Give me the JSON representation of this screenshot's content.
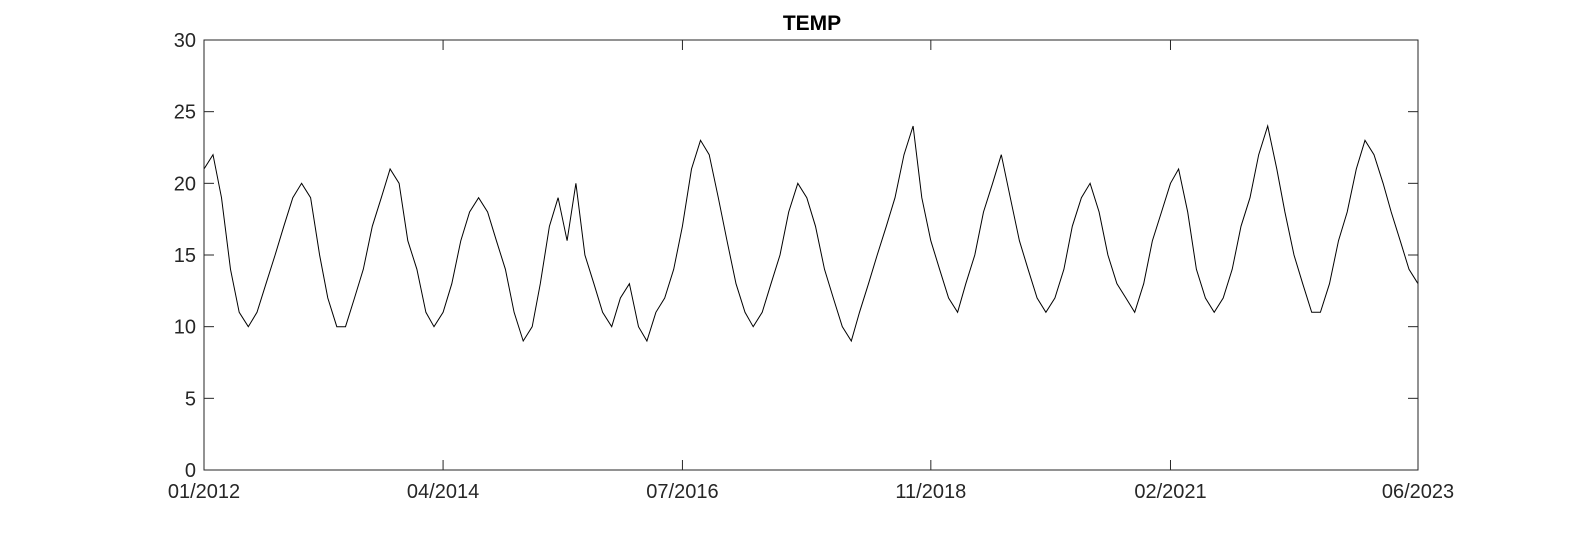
{
  "chart_data": {
    "type": "line",
    "title": "TEMP",
    "xlabel": "",
    "ylabel": "",
    "x_range": [
      "2012-01-01",
      "2023-06-01"
    ],
    "ylim": [
      0,
      30
    ],
    "x_ticks": [
      "01/2012",
      "04/2014",
      "07/2016",
      "11/2018",
      "02/2021",
      "06/2023"
    ],
    "y_ticks": [
      "0",
      "5",
      "10",
      "15",
      "20",
      "25",
      "30"
    ],
    "grid": false,
    "legend": "none",
    "line_color": "#000000",
    "series": [
      {
        "x": [
          "2012-01",
          "2012-02",
          "2012-03",
          "2012-04",
          "2012-05",
          "2012-06",
          "2012-07",
          "2012-08",
          "2012-09",
          "2012-10",
          "2012-11",
          "2012-12",
          "2013-01",
          "2013-02",
          "2013-03",
          "2013-04",
          "2013-05",
          "2013-06",
          "2013-07",
          "2013-08",
          "2013-09",
          "2013-10",
          "2013-11",
          "2013-12",
          "2014-01",
          "2014-02",
          "2014-03",
          "2014-04",
          "2014-05",
          "2014-06",
          "2014-07",
          "2014-08",
          "2014-09",
          "2014-10",
          "2014-11",
          "2014-12",
          "2015-01",
          "2015-02",
          "2015-03",
          "2015-04",
          "2015-05",
          "2015-06",
          "2015-07",
          "2015-08",
          "2015-09",
          "2015-10",
          "2015-11",
          "2015-12",
          "2016-01",
          "2016-02",
          "2016-03",
          "2016-04",
          "2016-05",
          "2016-06",
          "2016-07",
          "2016-08",
          "2016-09",
          "2016-10",
          "2016-11",
          "2016-12",
          "2017-01",
          "2017-02",
          "2017-03",
          "2017-04",
          "2017-05",
          "2017-06",
          "2017-07",
          "2017-08",
          "2017-09",
          "2017-10",
          "2017-11",
          "2017-12",
          "2018-01",
          "2018-02",
          "2018-03",
          "2018-04",
          "2018-05",
          "2018-06",
          "2018-07",
          "2018-08",
          "2018-09",
          "2018-10",
          "2018-11",
          "2018-12",
          "2019-01",
          "2019-02",
          "2019-03",
          "2019-04",
          "2019-05",
          "2019-06",
          "2019-07",
          "2019-08",
          "2019-09",
          "2019-10",
          "2019-11",
          "2019-12",
          "2020-01",
          "2020-02",
          "2020-03",
          "2020-04",
          "2020-05",
          "2020-06",
          "2020-07",
          "2020-08",
          "2020-09",
          "2020-10",
          "2020-11",
          "2020-12",
          "2021-01",
          "2021-02",
          "2021-03",
          "2021-04",
          "2021-05",
          "2021-06",
          "2021-07",
          "2021-08",
          "2021-09",
          "2021-10",
          "2021-11",
          "2021-12",
          "2022-01",
          "2022-02",
          "2022-03",
          "2022-04",
          "2022-05",
          "2022-06",
          "2022-07",
          "2022-08",
          "2022-09",
          "2022-10",
          "2022-11",
          "2022-12",
          "2023-01",
          "2023-02",
          "2023-03",
          "2023-04",
          "2023-05",
          "2023-06"
        ],
        "y": [
          21,
          22,
          19,
          14,
          11,
          10,
          11,
          13,
          15,
          17,
          19,
          20,
          19,
          15,
          12,
          10,
          10,
          12,
          14,
          17,
          19,
          21,
          20,
          16,
          14,
          11,
          10,
          11,
          13,
          16,
          18,
          19,
          18,
          16,
          14,
          11,
          9,
          10,
          13,
          17,
          19,
          16,
          20,
          15,
          13,
          11,
          10,
          12,
          13,
          10,
          9,
          11,
          12,
          14,
          17,
          21,
          23,
          22,
          19,
          16,
          13,
          11,
          10,
          11,
          13,
          15,
          18,
          20,
          19,
          17,
          14,
          12,
          10,
          9,
          11,
          13,
          15,
          17,
          19,
          22,
          24,
          19,
          16,
          14,
          12,
          11,
          13,
          15,
          18,
          20,
          22,
          19,
          16,
          14,
          12,
          11,
          12,
          14,
          17,
          19,
          20,
          18,
          15,
          13,
          12,
          11,
          13,
          16,
          18,
          20,
          21,
          18,
          14,
          12,
          11,
          12,
          14,
          17,
          19,
          22,
          24,
          21,
          18,
          15,
          13,
          11,
          11,
          13,
          16,
          18,
          21,
          23,
          22,
          20,
          18,
          16,
          14,
          13
        ]
      }
    ]
  }
}
